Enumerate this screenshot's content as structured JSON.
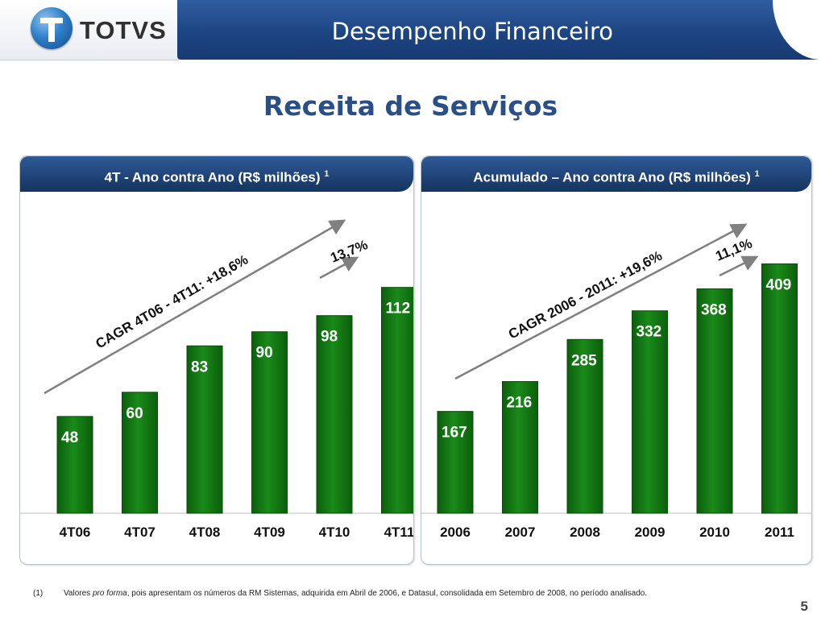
{
  "header": {
    "brand": "TOTVS",
    "page_title": "Desempenho Financeiro"
  },
  "subtitle": "Receita de Serviços",
  "colors": {
    "bar": "#1a8a1a",
    "bar_dark": "#0b5f0b",
    "header_blue": "#1d4583",
    "arrow": "#808080"
  },
  "chart_data": [
    {
      "type": "bar",
      "title": "4T - Ano contra Ano (R$ milhões)",
      "title_sup": "1",
      "categories": [
        "4T06",
        "4T07",
        "4T08",
        "4T09",
        "4T10",
        "4T11"
      ],
      "values": [
        48,
        60,
        83,
        90,
        98,
        112
      ],
      "annotations": [
        {
          "text": "CAGR 4T06 - 4T11: +18,6%"
        },
        {
          "text": "13,7%"
        }
      ],
      "grid": false
    },
    {
      "type": "bar",
      "title": "Acumulado – Ano contra Ano (R$ milhões)",
      "title_sup": "1",
      "categories": [
        "2006",
        "2007",
        "2008",
        "2009",
        "2010",
        "2011"
      ],
      "values": [
        167,
        216,
        285,
        332,
        368,
        409
      ],
      "annotations": [
        {
          "text": "CAGR 2006 - 2011: +19,6%"
        },
        {
          "text": "11,1%"
        }
      ],
      "grid": false
    }
  ],
  "footnote": {
    "num": "(1)",
    "pre": "Valores ",
    "italic": "pro forma",
    "post": ", pois apresentam os números da RM Sistemas, adquirida em Abril de 2006, e Datasul, consolidada em Setembro de 2008, no período analisado."
  },
  "page_number": "5"
}
